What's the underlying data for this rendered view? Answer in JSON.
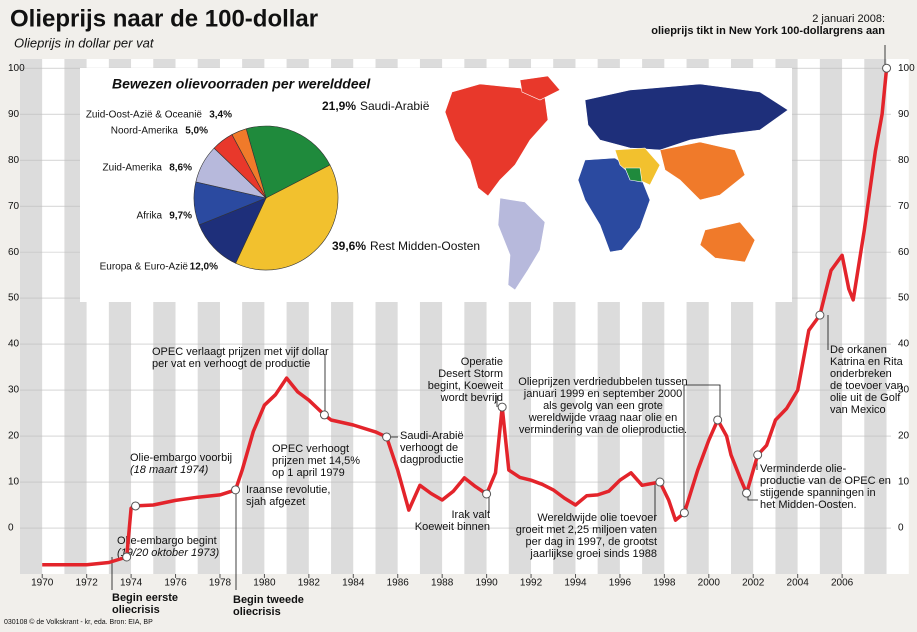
{
  "chart_data": [
    {
      "type": "line",
      "title": "Olieprijs naar de 100-dollar",
      "subtitle": "Olieprijs in dollar per vat",
      "x": [
        1970,
        1971,
        1972,
        1973,
        1973.8,
        1974.0,
        1974.2,
        1975,
        1976,
        1977,
        1978,
        1978.7,
        1979,
        1979.5,
        1980,
        1980.5,
        1981,
        1981.5,
        1982,
        1982.7,
        1983,
        1984,
        1985,
        1985.5,
        1986,
        1986.5,
        1987,
        1987.5,
        1988,
        1988.5,
        1989,
        1989.5,
        1990,
        1990.4,
        1990.7,
        1991,
        1991.5,
        1992,
        1992.5,
        1993,
        1993.5,
        1994,
        1994.5,
        1995,
        1995.5,
        1996,
        1996.5,
        1997,
        1997.8,
        1998.2,
        1998.5,
        1998.9,
        1999.5,
        2000,
        2000.4,
        2000.8,
        2001,
        2001.4,
        2001.7,
        2002.2,
        2002.6,
        2003,
        2003.5,
        2004,
        2004.5,
        2005,
        2005.5,
        2006,
        2006.3,
        2006.5,
        2007,
        2007.5,
        2007.8,
        2008.0
      ],
      "values": [
        -8,
        -8,
        -8,
        -7.5,
        -6.3,
        4.3,
        4.8,
        5,
        6,
        6.7,
        7.2,
        8.3,
        12.6,
        21,
        26.7,
        29,
        32.6,
        29.6,
        27.8,
        24.6,
        23.5,
        22.4,
        20.9,
        19.8,
        12.6,
        3.9,
        9.3,
        7.5,
        6.1,
        8,
        10.9,
        9,
        7.4,
        12,
        26.3,
        12.6,
        11,
        10.4,
        9.5,
        8.3,
        6.5,
        5,
        7,
        7.2,
        8,
        10.4,
        12,
        9.3,
        10,
        6,
        1.7,
        3.3,
        12.6,
        19.1,
        23.5,
        20,
        15.9,
        11,
        7.6,
        15.9,
        18,
        23.5,
        26,
        30,
        43,
        46.3,
        56,
        59.3,
        52,
        49.6,
        64.8,
        82,
        90,
        100
      ],
      "color": "#e3242b",
      "xlim": [
        1969,
        2008.2
      ],
      "ylim": [
        -10,
        102
      ],
      "xticks": [
        1970,
        1972,
        1974,
        1976,
        1978,
        1980,
        1982,
        1984,
        1986,
        1988,
        1990,
        1992,
        1994,
        1996,
        1998,
        2000,
        2002,
        2004,
        2006
      ],
      "yticks": [
        0,
        10,
        20,
        30,
        40,
        50,
        60,
        70,
        80,
        90,
        100
      ],
      "annotations": [
        [
          "Olie-embargo begint",
          "(19/20 oktober 1973)"
        ],
        [
          "Begin eerste",
          "oliecrisis"
        ],
        [
          "Olie-embargo voorbij",
          "(18 maart 1974)"
        ],
        [
          "OPEC verlaagt prijzen met vijf dollar",
          "per vat en verhoogt de productie"
        ],
        [
          "OPEC verhoogt",
          "prijzen met 14,5%",
          "op 1 april 1979"
        ],
        [
          "Iraanse revolutie,",
          "sjah afgezet"
        ],
        [
          "Begin tweede",
          "oliecrisis"
        ],
        [
          "Saudi-Arabië",
          "verhoogt de",
          "dagproductie"
        ],
        [
          "Operatie",
          "Desert Storm",
          "begint, Koeweit",
          "wordt bevrijd"
        ],
        [
          "Irak valt",
          "Koeweit binnen"
        ],
        [
          "Olieprijzen verdriedubbelen tussen",
          "januari 1999 en september 2000",
          "als gevolg van een grote",
          "wereldwijde vraag naar olie en",
          "vermindering van de olieproductie."
        ],
        [
          "Wereldwijde olie toevoer",
          "groeit met  2,25 miljoen vaten",
          "per dag in 1997, de grootst",
          "jaarlijkse groei sinds 1988"
        ],
        [
          "Verminderde olie-",
          "productie van de OPEC en",
          "stijgende spanningen in",
          "het Midden-Oosten."
        ],
        [
          "De orkanen",
          "Katrina en Rita",
          "onderbreken",
          "de toevoer van",
          "olie uit de Golf",
          "van Mexico"
        ],
        [
          "2 januari 2008:",
          "olieprijs tikt in New York 100-dollargrens aan"
        ]
      ],
      "source": "030108 © de Volkskrant - kr, eda. Bron: EIA, BP"
    },
    {
      "type": "pie",
      "title": "Bewezen olievoorraden per werelddeel",
      "categories": [
        "Saudi-Arabië",
        "Rest Midden-Oosten",
        "Europa & Euro-Azië",
        "Afrika",
        "Zuid-Amerika",
        "Noord-Amerika",
        "Zuid-Oost-Azië  & Oceanië"
      ],
      "values": [
        21.9,
        39.6,
        12.0,
        9.7,
        8.6,
        5.0,
        3.4
      ],
      "value_labels": [
        "21,9%",
        "39,6%",
        "12,0%",
        "9,7%",
        "8,6%",
        "5,0%",
        "3,4%"
      ],
      "colors": [
        "#1f8a3c",
        "#f2c12e",
        "#1e2f7a",
        "#2b4aa0",
        "#b7b9dc",
        "#e8382b",
        "#f07a2a"
      ]
    }
  ]
}
